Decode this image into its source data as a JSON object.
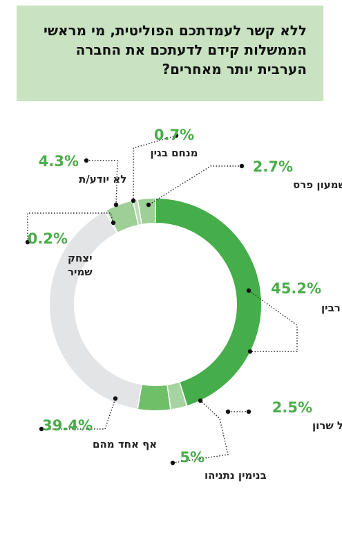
{
  "title": "ללא קשר לעמדתכם הפוליטית, מי מראשי הממשלות קידם לדעתכם את החברה הערבית יותר מאחרים?",
  "chart_data": {
    "type": "pie",
    "title": "ללא קשר לעמדתכם הפוליטית, מי מראשי הממשלות קידם לדעתכם את החברה הערבית יותר מאחרים?",
    "slices": [
      {
        "label": "יצחק רבין",
        "value": 45.2,
        "display": "45.2%",
        "color": "#45ad4a"
      },
      {
        "label": "אריאל שרון",
        "value": 2.5,
        "display": "2.5%",
        "color": "#a6d4a0"
      },
      {
        "label": "בנימין נתניהו",
        "value": 5,
        "display": "5%",
        "color": "#6fbf69"
      },
      {
        "label": "אף אחד מהם",
        "value": 39.4,
        "display": "39.4%",
        "color": "#e3e4e6"
      },
      {
        "label": "יצחק שמיר",
        "value": 0.2,
        "display": "0.2%",
        "color": "#b8dcb4"
      },
      {
        "label": "לא יודע/ת",
        "value": 4.3,
        "display": "4.3%",
        "color": "#9dcf96"
      },
      {
        "label": "מנחם בגין",
        "value": 0.7,
        "display": "0.7%",
        "color": "#b8dcb4"
      },
      {
        "label": "שמעון פרס",
        "value": 2.7,
        "display": "2.7%",
        "color": "#9dcf96"
      }
    ]
  }
}
